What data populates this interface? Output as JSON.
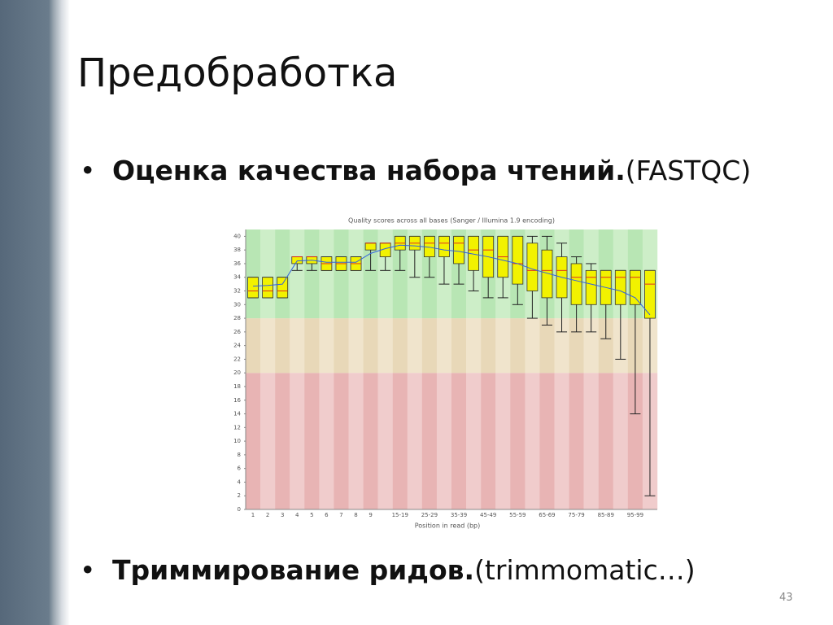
{
  "slide": {
    "title": "Предобработка",
    "bullets": [
      {
        "bold": "Оценка качества набора чтений.",
        "normal": "(FASTQC)"
      },
      {
        "bold": "Триммирование ридов.",
        "normal": "(trimmomatic…)"
      }
    ],
    "page_number": "43"
  },
  "chart_data": {
    "type": "boxplot",
    "title": "Quality scores across all bases (Sanger / Illumina 1.9 encoding)",
    "x_label": "Position in read (bp)",
    "categories": [
      "1",
      "2",
      "3",
      "4",
      "5",
      "6",
      "7",
      "8",
      "9",
      null,
      "15-19",
      null,
      "25-29",
      null,
      "35-39",
      null,
      "45-49",
      null,
      "55-59",
      null,
      "65-69",
      null,
      "75-79",
      null,
      "85-89",
      null,
      "95-99",
      null
    ],
    "whisker_low": [
      31,
      31,
      31,
      35,
      35,
      35,
      35,
      35,
      35,
      35,
      35,
      34,
      34,
      33,
      33,
      32,
      31,
      31,
      30,
      28,
      27,
      26,
      26,
      26,
      25,
      22,
      14,
      2
    ],
    "q1": [
      31,
      31,
      31,
      36,
      36,
      35,
      35,
      35,
      38,
      37,
      38,
      38,
      37,
      37,
      36,
      35,
      34,
      34,
      33,
      32,
      31,
      31,
      30,
      30,
      30,
      30,
      30,
      28
    ],
    "median": [
      32,
      32,
      32,
      37,
      37,
      36,
      36,
      36,
      39,
      39,
      39,
      39,
      39,
      39,
      39,
      38,
      38,
      37,
      36,
      35,
      35,
      35,
      34,
      34,
      34,
      34,
      34,
      33
    ],
    "q3": [
      34,
      34,
      34,
      37,
      37,
      37,
      37,
      37,
      39,
      39,
      40,
      40,
      40,
      40,
      40,
      40,
      40,
      40,
      40,
      39,
      38,
      37,
      36,
      35,
      35,
      35,
      35,
      35
    ],
    "whisker_high": [
      34,
      34,
      34,
      37,
      37,
      37,
      37,
      37,
      39,
      39,
      40,
      40,
      40,
      40,
      40,
      40,
      40,
      40,
      40,
      40,
      40,
      39,
      37,
      36,
      35,
      35,
      35,
      35
    ],
    "mean": [
      32.7,
      32.8,
      33,
      36.4,
      36.5,
      36.2,
      36.2,
      36.2,
      37.5,
      38.2,
      38.7,
      38.6,
      38.4,
      38,
      37.8,
      37.4,
      37,
      36.5,
      36,
      35.2,
      34.6,
      34,
      33.5,
      33,
      32.5,
      32,
      31,
      28.5
    ],
    "ylim": [
      0,
      41
    ],
    "yticks": [
      0,
      2,
      4,
      6,
      8,
      10,
      12,
      14,
      16,
      18,
      20,
      22,
      24,
      26,
      28,
      30,
      32,
      34,
      36,
      38,
      40
    ],
    "zones": [
      {
        "from": 0,
        "to": 20,
        "color": "#e8b4b4",
        "alt_color": "#f0cccc"
      },
      {
        "from": 20,
        "to": 28,
        "color": "#e8d8b8",
        "alt_color": "#f0e4cc"
      },
      {
        "from": 28,
        "to": 41,
        "color": "#b8e6b4",
        "alt_color": "#cdeec8"
      }
    ],
    "box_color": "#f2f200",
    "median_color": "#e03020",
    "mean_color": "#3060e0"
  }
}
